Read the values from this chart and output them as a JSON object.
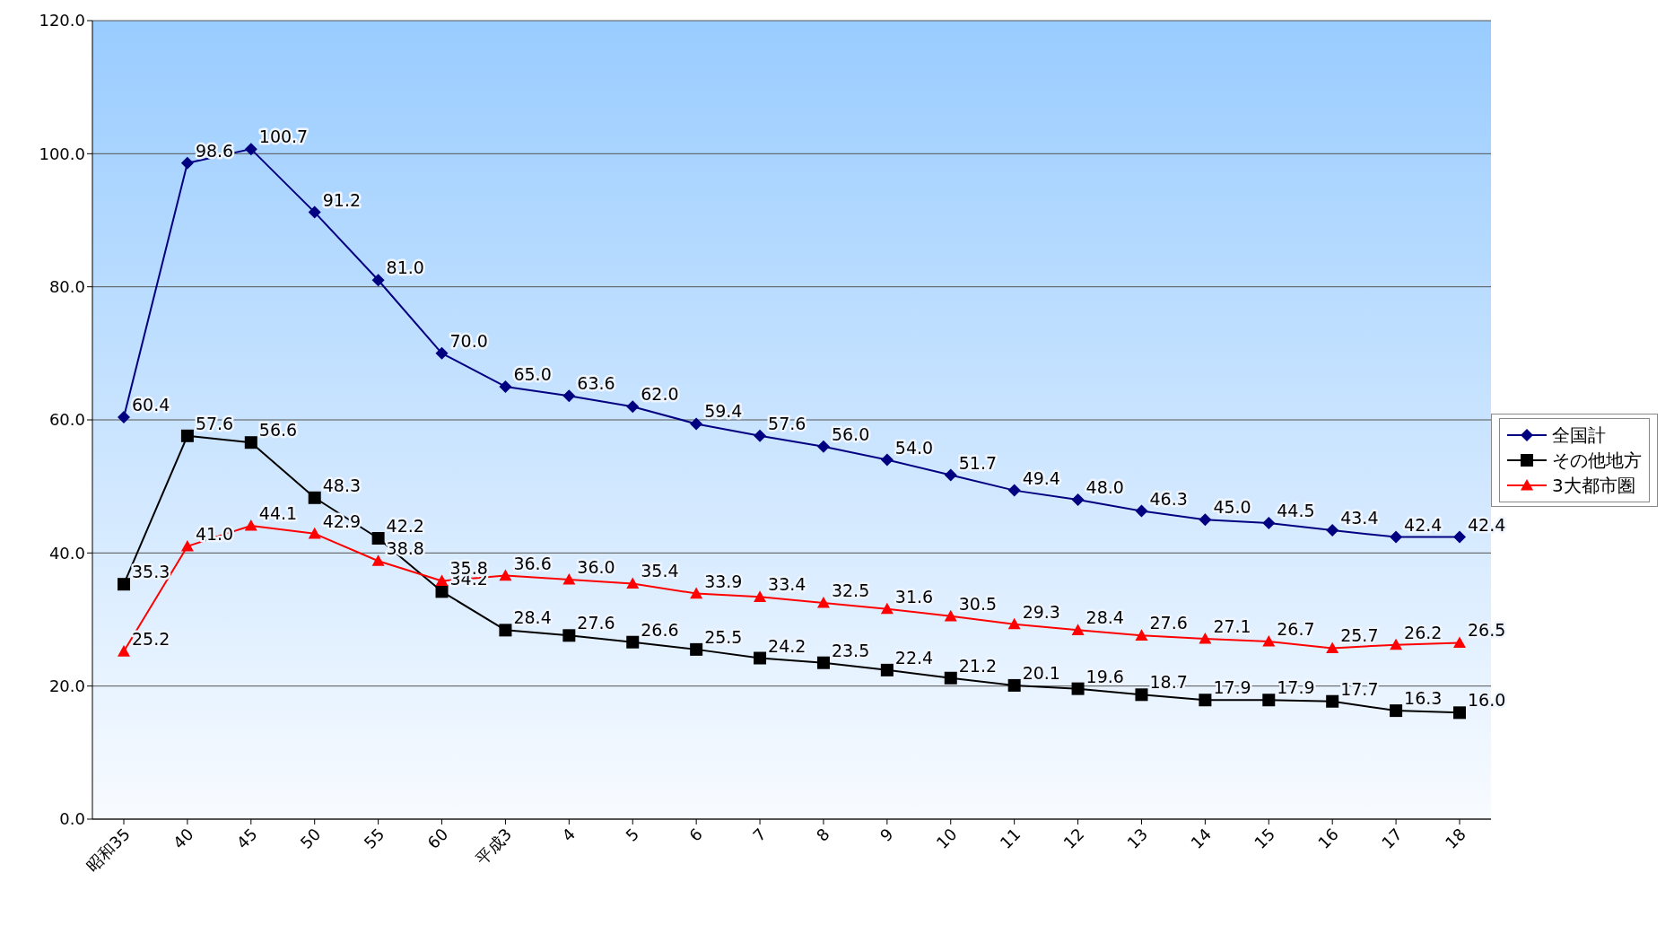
{
  "chart_data": {
    "type": "line",
    "categories": [
      "昭和35",
      "40",
      "45",
      "50",
      "55",
      "60",
      "平成3",
      "4",
      "5",
      "6",
      "7",
      "8",
      "9",
      "10",
      "11",
      "12",
      "13",
      "14",
      "15",
      "16",
      "17",
      "18"
    ],
    "series": [
      {
        "name": "全国計",
        "color": "#000080",
        "marker": "diamond",
        "values": [
          60.4,
          98.6,
          100.7,
          91.2,
          81.0,
          70.0,
          65.0,
          63.6,
          62.0,
          59.4,
          57.6,
          56.0,
          54.0,
          51.7,
          49.4,
          48.0,
          46.3,
          45.0,
          44.5,
          43.4,
          42.4,
          42.4
        ],
        "value_labels": [
          "60.4",
          "98.6",
          "100.7",
          "91.2",
          "81.0",
          "70.0",
          "65.0",
          "63.6",
          "62.0",
          "59.4",
          "57.6",
          "56.0",
          "54.0",
          "51.7",
          "49.4",
          "48.0",
          "46.3",
          "45.0",
          "44.5",
          "43.4",
          "42.4",
          "42.4"
        ]
      },
      {
        "name": "その他地方",
        "color": "#000000",
        "marker": "square",
        "values": [
          35.3,
          57.6,
          56.6,
          48.3,
          42.2,
          34.2,
          28.4,
          27.6,
          26.6,
          25.5,
          24.2,
          23.5,
          22.4,
          21.2,
          20.1,
          19.6,
          18.7,
          17.9,
          17.9,
          17.7,
          16.3,
          16.0
        ],
        "value_labels": [
          "35.3",
          "57.6",
          "56.6",
          "48.3",
          "42.2",
          "34.2",
          "28.4",
          "27.6",
          "26.6",
          "25.5",
          "24.2",
          "23.5",
          "22.4",
          "21.2",
          "20.1",
          "19.6",
          "18.7",
          "17.9",
          "17.9",
          "17.7",
          "16.3",
          "16.0"
        ]
      },
      {
        "name": "3大都市圏",
        "color": "#ff0000",
        "marker": "triangle",
        "values": [
          25.2,
          41.0,
          44.1,
          42.9,
          38.8,
          35.8,
          36.6,
          36.0,
          35.4,
          33.9,
          33.4,
          32.5,
          31.6,
          30.5,
          29.3,
          28.4,
          27.6,
          27.1,
          26.7,
          25.7,
          26.2,
          26.5
        ],
        "value_labels": [
          "25.2",
          "41.0",
          "44.1",
          "42.9",
          "38.8",
          "35.8",
          "36.6",
          "36.0",
          "35.4",
          "33.9",
          "33.4",
          "32.5",
          "31.6",
          "30.5",
          "29.3",
          "28.4",
          "27.6",
          "27.1",
          "26.7",
          "25.7",
          "26.2",
          "26.5"
        ]
      }
    ],
    "ylim": [
      0,
      120
    ],
    "yticks": [
      {
        "value": 0,
        "label": "0.0"
      },
      {
        "value": 20,
        "label": "20.0"
      },
      {
        "value": 40,
        "label": "40.0"
      },
      {
        "value": 60,
        "label": "60.0"
      },
      {
        "value": 80,
        "label": "80.0"
      },
      {
        "value": 100,
        "label": "100.0"
      },
      {
        "value": 120,
        "label": "120.0"
      }
    ],
    "grid": "y",
    "legend": "right",
    "line_style": "solid"
  }
}
